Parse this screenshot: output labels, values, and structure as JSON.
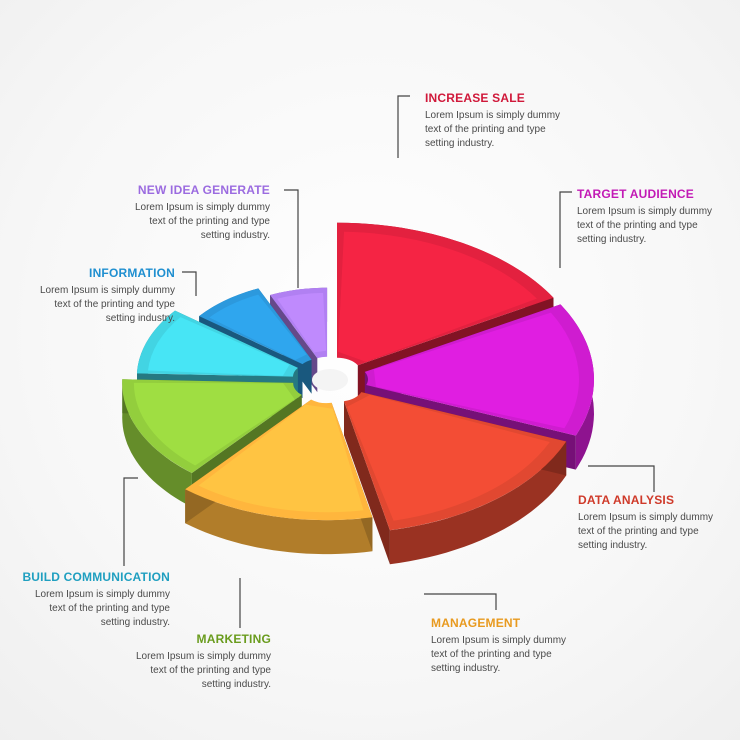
{
  "chart_data": {
    "type": "pie",
    "style": "3d-exploded",
    "values": [
      15,
      13,
      14,
      13,
      13,
      9,
      7,
      6
    ],
    "value_basis": "approximate slice angle share (%)",
    "slices": [
      {
        "label": "INCREASE SALE",
        "description": "Lorem Ipsum is simply dummy text of the printing and type setting industry.",
        "desc_lines": [
          "Lorem Ipsum is simply dummy",
          "text of the printing and type",
          "setting industry."
        ],
        "color": "#d81f3c",
        "label_color": "#d0183a"
      },
      {
        "label": "TARGET AUDIENCE",
        "description": "Lorem Ipsum is simply dummy text of the printing and type setting industry.",
        "desc_lines": [
          "Lorem Ipsum is simply dummy",
          "text of the printing and type",
          "setting industry."
        ],
        "color": "#c51bc6",
        "label_color": "#c21ab5"
      },
      {
        "label": "DATA ANALYSIS",
        "description": "Lorem Ipsum is simply dummy text of the printing and type setting industry.",
        "desc_lines": [
          "Lorem Ipsum is simply dummy",
          "text of the printing and type",
          "setting industry."
        ],
        "color": "#d6452f",
        "label_color": "#cf3a2a"
      },
      {
        "label": "MANAGEMENT",
        "description": "Lorem Ipsum is simply dummy text of the printing and type setting industry.",
        "desc_lines": [
          "Lorem Ipsum is simply dummy",
          "text of the printing and type",
          "setting industry."
        ],
        "color": "#f6ad3a",
        "label_color": "#e89a1f"
      },
      {
        "label": "MARKETING",
        "description": "Lorem Ipsum is simply dummy text of the printing and type setting industry.",
        "desc_lines": [
          "Lorem Ipsum is simply dummy",
          "text of the printing and type",
          "setting industry."
        ],
        "color": "#8cc43a",
        "label_color": "#6a9c1e"
      },
      {
        "label": "BUILD COMMUNICATION",
        "description": "Lorem Ipsum is simply dummy text of the printing and type setting industry.",
        "desc_lines": [
          "Lorem Ipsum is simply dummy",
          "text of the printing and type",
          "setting industry."
        ],
        "color": "#3fcad8",
        "label_color": "#1f9fc0"
      },
      {
        "label": "INFORMATION",
        "description": "Lorem Ipsum is simply dummy text of the printing and type setting industry.",
        "desc_lines": [
          "Lorem Ipsum is simply dummy",
          "text of the printing and type",
          "setting industry."
        ],
        "color": "#2a92d2",
        "label_color": "#1f8fd0"
      },
      {
        "label": "NEW IDEA GENERATE",
        "description": "Lorem Ipsum is simply dummy text of the printing and type setting industry.",
        "desc_lines": [
          "Lorem Ipsum is simply dummy",
          "text of the printing and type",
          "setting industry."
        ],
        "color": "#a97ae6",
        "label_color": "#9b6be0"
      }
    ]
  }
}
